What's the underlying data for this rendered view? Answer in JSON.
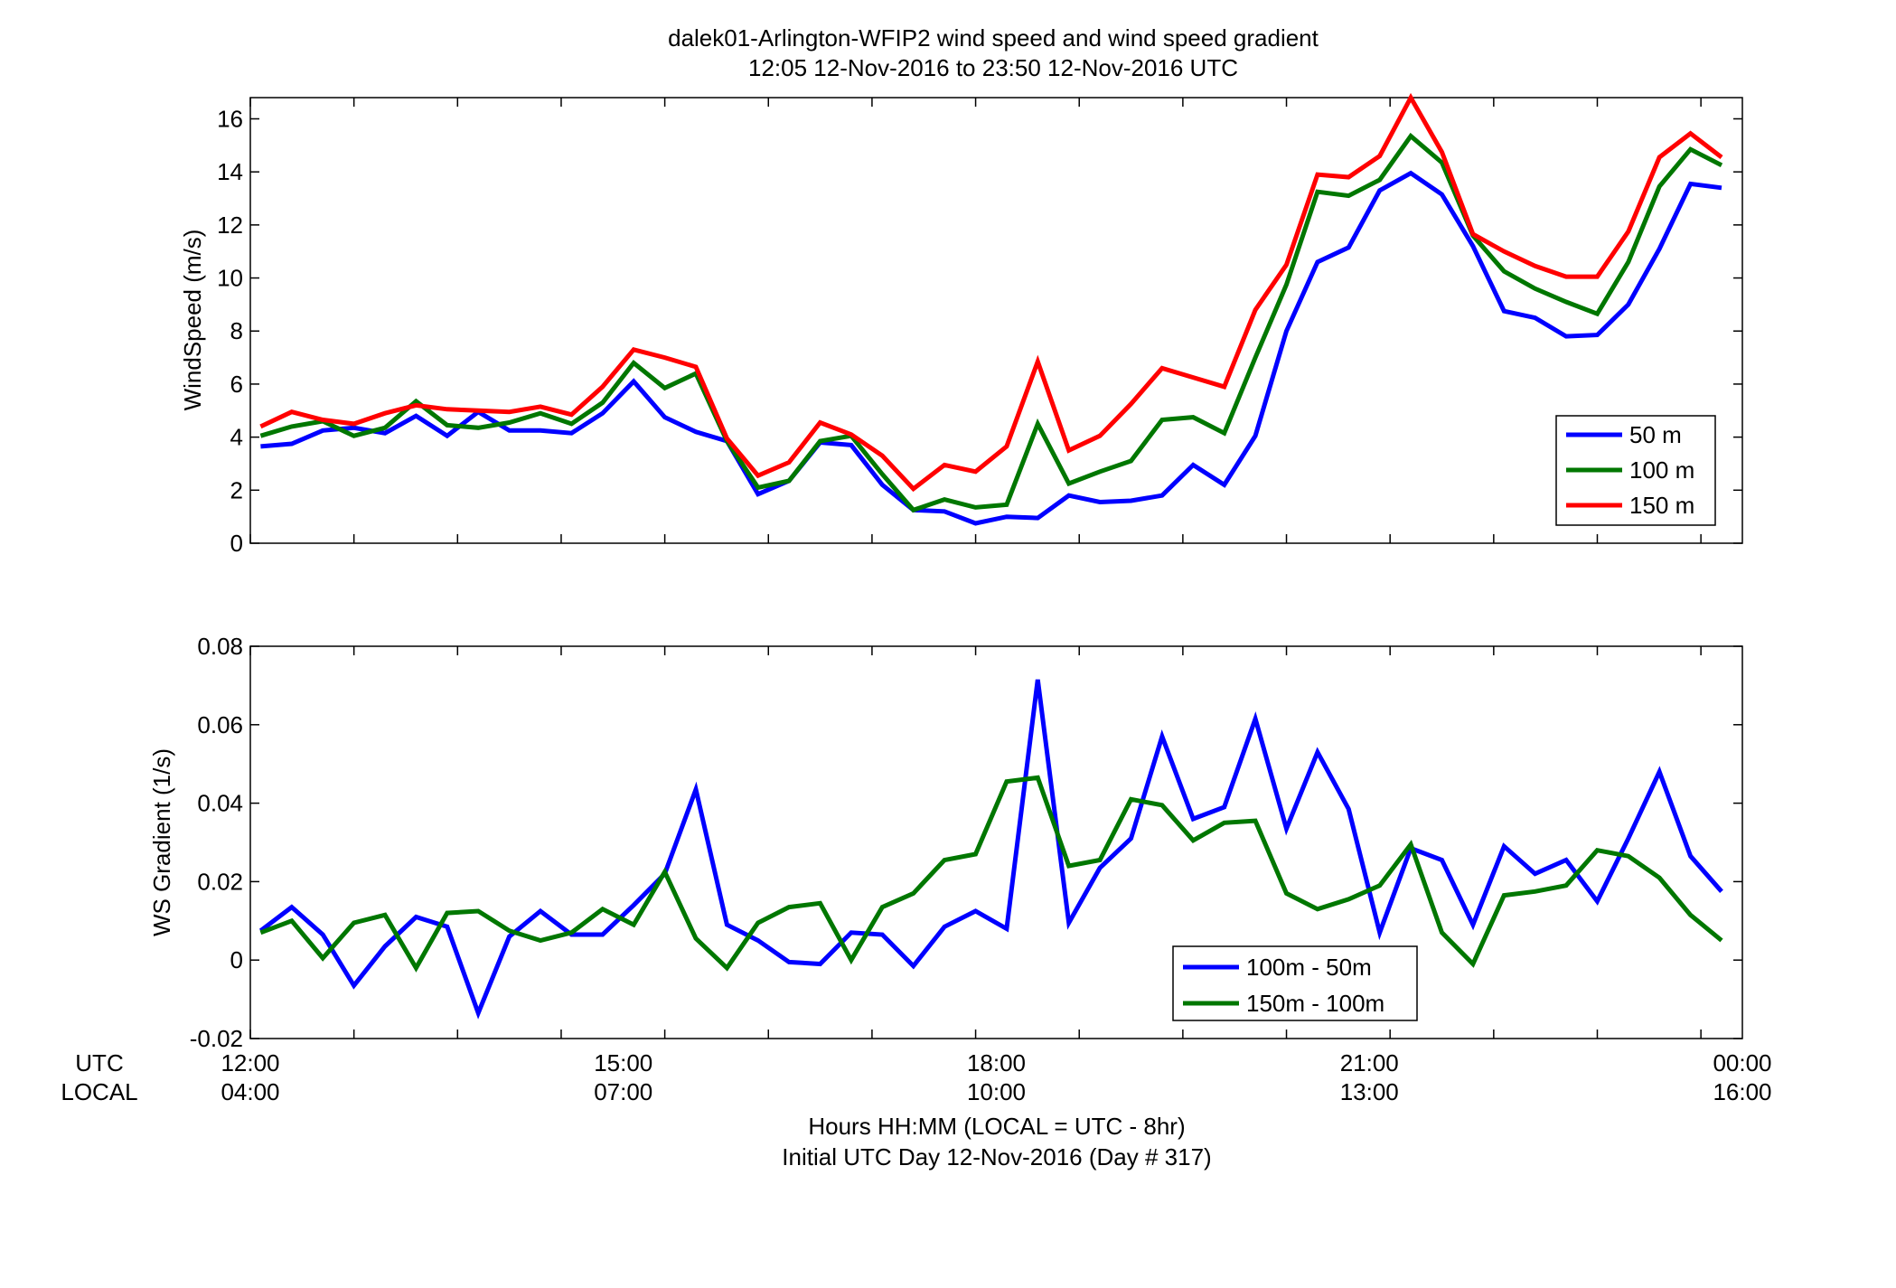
{
  "figure": {
    "title_line1": "dalek01-Arlington-WFIP2  wind speed and wind speed gradient",
    "title_line2": "12:05 12-Nov-2016 to 23:50 12-Nov-2016  UTC",
    "xlabel_line1": "Hours HH:MM  (LOCAL = UTC - 8hr)",
    "xlabel_line2": "Initial UTC Day 12-Nov-2016 (Day # 317)",
    "row_label_utc": "UTC",
    "row_label_local": "LOCAL"
  },
  "chart_data": [
    {
      "type": "line",
      "ylabel": "WindSpeed (m/s)",
      "xlim": [
        12,
        24
      ],
      "ylim": [
        0,
        16.8
      ],
      "yticks": [
        0,
        2,
        4,
        6,
        8,
        10,
        12,
        14,
        16
      ],
      "grid": false,
      "legend_position": "bottom-right",
      "x": [
        12.083,
        12.333,
        12.583,
        12.833,
        13.083,
        13.333,
        13.583,
        13.833,
        14.083,
        14.333,
        14.583,
        14.833,
        15.083,
        15.333,
        15.583,
        15.833,
        16.083,
        16.333,
        16.583,
        16.833,
        17.083,
        17.333,
        17.583,
        17.833,
        18.083,
        18.333,
        18.583,
        18.833,
        19.083,
        19.333,
        19.583,
        19.833,
        20.083,
        20.333,
        20.583,
        20.833,
        21.083,
        21.333,
        21.583,
        21.833,
        22.083,
        22.333,
        22.583,
        22.833,
        23.083,
        23.333,
        23.583,
        23.833
      ],
      "series": [
        {
          "name": "50 m",
          "color": "#0000ff",
          "values": [
            3.65,
            3.75,
            4.25,
            4.35,
            4.15,
            4.8,
            4.05,
            4.95,
            4.25,
            4.25,
            4.15,
            4.9,
            6.1,
            4.75,
            4.2,
            3.85,
            1.85,
            2.35,
            3.8,
            3.7,
            2.2,
            1.25,
            1.2,
            0.75,
            1.0,
            0.95,
            1.8,
            1.55,
            1.6,
            1.8,
            2.95,
            2.2,
            4.05,
            8.0,
            10.6,
            11.15,
            13.3,
            13.95,
            13.15,
            11.2,
            8.75,
            8.5,
            7.8,
            7.85,
            9.0,
            11.1,
            13.55,
            13.4
          ]
        },
        {
          "name": "100 m",
          "color": "#007700",
          "values": [
            4.05,
            4.4,
            4.6,
            4.05,
            4.35,
            5.35,
            4.45,
            4.35,
            4.55,
            4.9,
            4.5,
            5.3,
            6.8,
            5.85,
            6.4,
            3.85,
            2.1,
            2.35,
            3.85,
            4.05,
            2.6,
            1.25,
            1.65,
            1.35,
            1.45,
            4.5,
            2.25,
            2.7,
            3.1,
            4.65,
            4.75,
            4.15,
            7.0,
            9.75,
            13.25,
            13.1,
            13.7,
            15.35,
            14.35,
            11.6,
            10.25,
            9.6,
            9.1,
            8.65,
            10.6,
            13.45,
            14.85,
            14.25
          ]
        },
        {
          "name": "150 m",
          "color": "#ff0000",
          "values": [
            4.4,
            4.95,
            4.65,
            4.5,
            4.9,
            5.2,
            5.05,
            5.0,
            4.95,
            5.15,
            4.85,
            5.9,
            7.3,
            7.0,
            6.65,
            3.95,
            2.55,
            3.05,
            4.55,
            4.1,
            3.3,
            2.05,
            2.95,
            2.7,
            3.65,
            6.85,
            3.5,
            4.05,
            5.25,
            6.6,
            6.25,
            5.9,
            8.8,
            10.5,
            13.9,
            13.8,
            14.6,
            16.8,
            14.75,
            11.65,
            11.0,
            10.45,
            10.05,
            10.05,
            11.75,
            14.55,
            15.45,
            14.55
          ]
        }
      ]
    },
    {
      "type": "line",
      "ylabel": "WS Gradient (1/s)",
      "xlim": [
        12,
        24
      ],
      "ylim": [
        -0.02,
        0.08
      ],
      "yticks": [
        -0.02,
        0,
        0.02,
        0.04,
        0.06,
        0.08
      ],
      "ytick_labels": [
        "-0.02",
        "0",
        "0.02",
        "0.04",
        "0.06",
        "0.08"
      ],
      "xtick_values": [
        12,
        15,
        18,
        21,
        24
      ],
      "xtick_labels_utc": [
        "12:00",
        "15:00",
        "18:00",
        "21:00",
        "00:00"
      ],
      "xtick_labels_local": [
        "04:00",
        "07:00",
        "10:00",
        "13:00",
        "16:00"
      ],
      "grid": false,
      "legend_position": "bottom-center-right",
      "x": [
        12.083,
        12.333,
        12.583,
        12.833,
        13.083,
        13.333,
        13.583,
        13.833,
        14.083,
        14.333,
        14.583,
        14.833,
        15.083,
        15.333,
        15.583,
        15.833,
        16.083,
        16.333,
        16.583,
        16.833,
        17.083,
        17.333,
        17.583,
        17.833,
        18.083,
        18.333,
        18.583,
        18.833,
        19.083,
        19.333,
        19.583,
        19.833,
        20.083,
        20.333,
        20.583,
        20.833,
        21.083,
        21.333,
        21.583,
        21.833,
        22.083,
        22.333,
        22.583,
        22.833,
        23.083,
        23.333,
        23.583,
        23.833
      ],
      "series": [
        {
          "name": "100m - 50m",
          "color": "#0000ff",
          "values": [
            0.0075,
            0.0135,
            0.0065,
            -0.0065,
            0.0035,
            0.011,
            0.0085,
            -0.0135,
            0.006,
            0.0125,
            0.0065,
            0.0065,
            0.014,
            0.022,
            0.0435,
            0.009,
            0.005,
            -0.0005,
            -0.001,
            0.007,
            0.0065,
            -0.0015,
            0.0085,
            0.0125,
            0.008,
            0.0715,
            0.0095,
            0.0235,
            0.031,
            0.057,
            0.036,
            0.039,
            0.0615,
            0.0335,
            0.053,
            0.0385,
            0.007,
            0.0285,
            0.0255,
            0.009,
            0.029,
            0.022,
            0.0255,
            0.015,
            0.031,
            0.048,
            0.0265,
            0.0175
          ]
        },
        {
          "name": "150m - 100m",
          "color": "#007700",
          "values": [
            0.007,
            0.01,
            0.0005,
            0.0095,
            0.0115,
            -0.002,
            0.012,
            0.0125,
            0.0075,
            0.005,
            0.007,
            0.013,
            0.009,
            0.0225,
            0.0055,
            -0.002,
            0.0095,
            0.0135,
            0.0145,
            0.0,
            0.0135,
            0.017,
            0.0255,
            0.027,
            0.0455,
            0.0465,
            0.024,
            0.0255,
            0.041,
            0.0395,
            0.0305,
            0.035,
            0.0355,
            0.017,
            0.013,
            0.0155,
            0.019,
            0.0295,
            0.007,
            -0.001,
            0.0165,
            0.0175,
            0.019,
            0.028,
            0.0265,
            0.021,
            0.0115,
            0.005
          ]
        }
      ]
    }
  ]
}
